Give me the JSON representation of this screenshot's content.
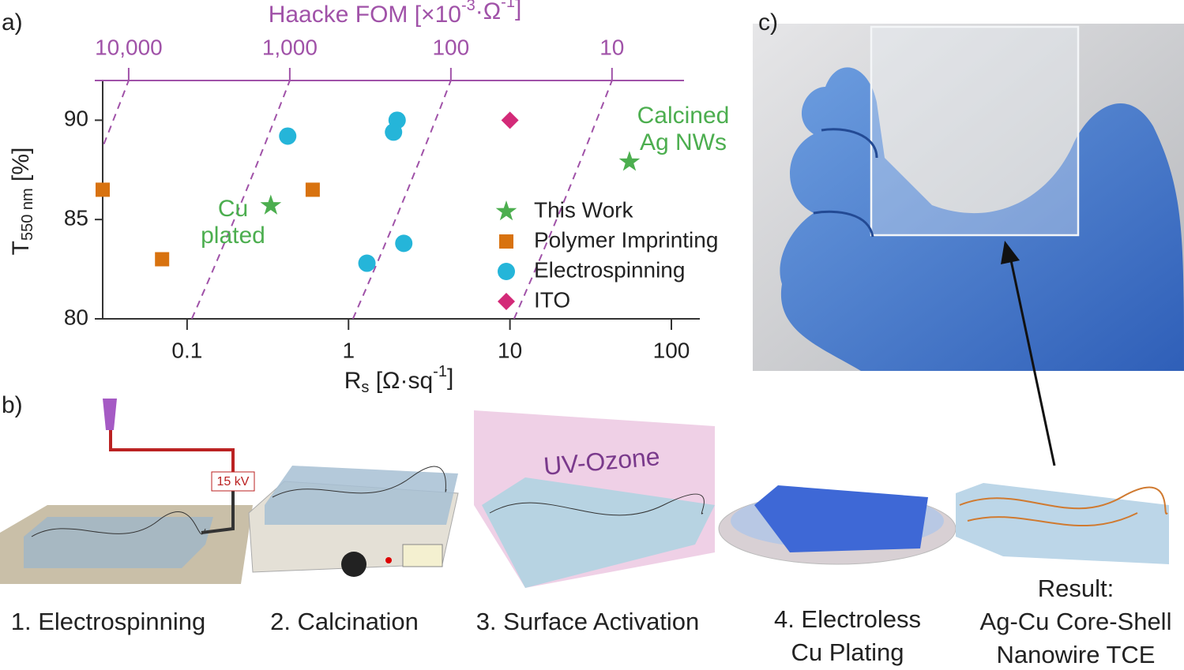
{
  "chart_data": {
    "type": "scatter",
    "xlabel": [
      "R",
      "s",
      " [Ω·sq",
      "-1",
      "]"
    ],
    "ylabel": [
      "T",
      "550 nm",
      " [%]"
    ],
    "x2label": [
      "Haacke FOM [×10",
      "-3",
      "·Ω",
      "-1",
      "]"
    ],
    "xscale": "log",
    "x2scale": "log",
    "xlim": [
      0.03,
      150
    ],
    "ylim": [
      80,
      92
    ],
    "x2lim": [
      14500,
      2.85
    ],
    "xticks": [
      0.1,
      1,
      10,
      100
    ],
    "yticks": [
      80,
      85,
      90
    ],
    "x2ticks": [
      {
        "value": 10000,
        "label": "10,000"
      },
      {
        "value": 1000,
        "label": "1,000"
      },
      {
        "value": 100,
        "label": "100"
      },
      {
        "value": 10,
        "label": "10"
      }
    ],
    "series": [
      {
        "name": "This Work",
        "marker": "star",
        "color": "#4cae4f",
        "x": [
          0.33,
          55
        ],
        "values": [
          85.7,
          87.9
        ]
      },
      {
        "name": "Polymer Imprinting",
        "marker": "square",
        "color": "#d8720f",
        "x": [
          0.03,
          0.07,
          0.6
        ],
        "values": [
          86.5,
          83.0,
          86.5
        ]
      },
      {
        "name": "Electrospinning",
        "marker": "circle",
        "color": "#25b5d9",
        "x": [
          0.42,
          2.0,
          1.9,
          1.3,
          2.2
        ],
        "values": [
          89.2,
          90.0,
          89.4,
          82.8,
          83.8
        ]
      },
      {
        "name": "ITO",
        "marker": "diamond",
        "color": "#d32a78",
        "x": [
          10
        ],
        "values": [
          90.0
        ]
      }
    ],
    "annotations": [
      [
        "Cu",
        "plated"
      ],
      [
        "Calcined",
        "Ag NWs"
      ]
    ],
    "annotation_color": "#4cae4f",
    "top_axis_color": "#a052a8"
  },
  "panels": [
    "a)",
    "b)",
    "c)"
  ],
  "steps": [
    [
      "1. Electrospinning"
    ],
    [
      "2. Calcination"
    ],
    [
      "3. Surface Activation"
    ],
    [
      "4. Electroless",
      "Cu Plating"
    ],
    [
      "Result:",
      "Ag-Cu Core-Shell",
      "Nanowire TCE"
    ]
  ],
  "voltage": "15 kV",
  "chamber": "UV-Ozone"
}
